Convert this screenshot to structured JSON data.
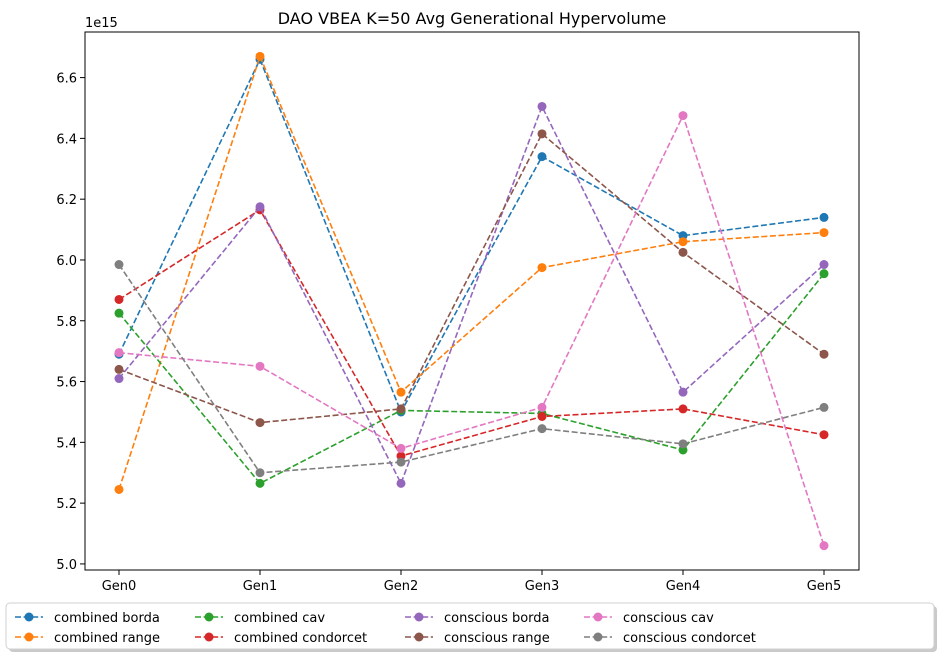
{
  "chart_data": {
    "type": "line",
    "title": "DAO VBEA K=50 Avg Generational Hypervolume",
    "xlabel": "",
    "ylabel": "",
    "y_offset_label": "1e15",
    "categories": [
      "Gen0",
      "Gen1",
      "Gen2",
      "Gen3",
      "Gen4",
      "Gen5"
    ],
    "ylim": [
      4.98,
      6.75
    ],
    "yticks": [
      5.0,
      5.2,
      5.4,
      5.6,
      5.8,
      6.0,
      6.2,
      6.4,
      6.6
    ],
    "ytick_labels": [
      "5.0",
      "5.2",
      "5.4",
      "5.6",
      "5.8",
      "6.0",
      "6.2",
      "6.4",
      "6.6"
    ],
    "legend_position": "bottom-center",
    "series": [
      {
        "name": "combined borda",
        "color": "#1f77b4",
        "values": [
          5.69,
          6.66,
          5.5,
          6.34,
          6.08,
          6.14
        ]
      },
      {
        "name": "combined range",
        "color": "#ff7f0e",
        "values": [
          5.245,
          6.67,
          5.565,
          5.975,
          6.06,
          6.09
        ]
      },
      {
        "name": "combined cav",
        "color": "#2ca02c",
        "values": [
          5.825,
          5.265,
          5.505,
          5.495,
          5.375,
          5.955
        ]
      },
      {
        "name": "combined condorcet",
        "color": "#d62728",
        "values": [
          5.87,
          6.165,
          5.355,
          5.485,
          5.51,
          5.425
        ]
      },
      {
        "name": "conscious borda",
        "color": "#9467bd",
        "values": [
          5.61,
          6.175,
          5.265,
          6.505,
          5.565,
          5.985
        ]
      },
      {
        "name": "conscious range",
        "color": "#8c564b",
        "values": [
          5.64,
          5.465,
          5.51,
          6.415,
          6.025,
          5.69
        ]
      },
      {
        "name": "conscious cav",
        "color": "#e377c2",
        "values": [
          5.695,
          5.65,
          5.38,
          5.515,
          6.475,
          5.06
        ]
      },
      {
        "name": "conscious condorcet",
        "color": "#7f7f7f",
        "values": [
          5.985,
          5.3,
          5.335,
          5.445,
          5.395,
          5.515
        ]
      }
    ]
  }
}
